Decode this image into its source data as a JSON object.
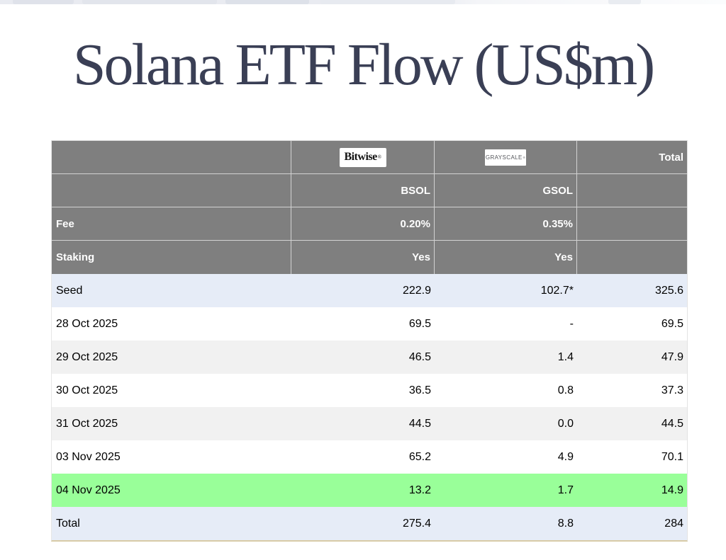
{
  "chart_data": {
    "type": "table",
    "title": "Solana ETF Flow (US$m)",
    "providers": {
      "bitwise": {
        "name": "Bitwise",
        "reg": "®"
      },
      "grayscale": {
        "name": "GRAYSCALE",
        "reg": "®"
      }
    },
    "total_header": "Total",
    "tickers": {
      "bsol": "BSOL",
      "gsol": "GSOL"
    },
    "meta_rows": [
      {
        "label": "Fee",
        "bsol": "0.20%",
        "gsol": "0.35%",
        "total": ""
      },
      {
        "label": "Staking",
        "bsol": "Yes",
        "gsol": "Yes",
        "total": ""
      }
    ],
    "data_rows": [
      {
        "label": "Seed",
        "bsol": "222.9",
        "gsol": "102.7*",
        "total": "325.6",
        "highlight": "blue"
      },
      {
        "label": "28 Oct 2025",
        "bsol": "69.5",
        "gsol": "-",
        "total": "69.5",
        "highlight": "white"
      },
      {
        "label": "29 Oct 2025",
        "bsol": "46.5",
        "gsol": "1.4",
        "total": "47.9",
        "highlight": "gray"
      },
      {
        "label": "30 Oct 2025",
        "bsol": "36.5",
        "gsol": "0.8",
        "total": "37.3",
        "highlight": "white"
      },
      {
        "label": "31 Oct 2025",
        "bsol": "44.5",
        "gsol": "0.0",
        "total": "44.5",
        "highlight": "gray"
      },
      {
        "label": "03 Nov 2025",
        "bsol": "65.2",
        "gsol": "4.9",
        "total": "70.1",
        "highlight": "white"
      },
      {
        "label": "04 Nov 2025",
        "bsol": "13.2",
        "gsol": "1.7",
        "total": "14.9",
        "highlight": "green"
      },
      {
        "label": "Total",
        "bsol": "275.4",
        "gsol": "8.8",
        "total": "284",
        "highlight": "blue"
      }
    ],
    "layout": {
      "grid": "off",
      "legend": "none"
    }
  },
  "colors": {
    "title_text": "#3a3f55",
    "header_background": "#7f7f7f",
    "header_text": "#ffffff",
    "row_blue": "#e6ecf7",
    "row_alt_gray": "#f1f1f1",
    "row_highlight_green": "#99ff99",
    "table_bottom_border": "#d8cba6"
  }
}
